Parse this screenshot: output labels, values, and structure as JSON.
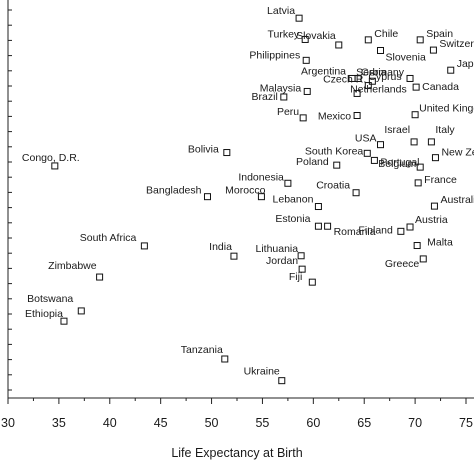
{
  "chart_data": {
    "type": "scatter",
    "title": "",
    "xlabel": "Life Expectancy at Birth",
    "ylabel": "",
    "xlim": [
      30,
      75
    ],
    "ylim": [
      0,
      1
    ],
    "x_ticks": [
      "30",
      "35",
      "40",
      "45",
      "50",
      "55",
      "60",
      "65",
      "70",
      "75"
    ],
    "grid": false,
    "marker": "open-square",
    "points": [
      {
        "label": "Latvia",
        "x": 58.6,
        "y": 0.964
      },
      {
        "label": "Turkey",
        "x": 59.2,
        "y": 0.91
      },
      {
        "label": "Slovakia",
        "x": 62.5,
        "y": 0.896
      },
      {
        "label": "Chile",
        "x": 65.4,
        "y": 0.909
      },
      {
        "label": "Spain",
        "x": 70.5,
        "y": 0.909
      },
      {
        "label": "Switzerland",
        "x": 71.8,
        "y": 0.883
      },
      {
        "label": "Philippines",
        "x": 59.3,
        "y": 0.857
      },
      {
        "label": "Slovenia",
        "x": 66.6,
        "y": 0.882
      },
      {
        "label": "Japan",
        "x": 73.5,
        "y": 0.832
      },
      {
        "label": "Argentina",
        "x": 63.8,
        "y": 0.811
      },
      {
        "label": "Serbia",
        "x": 64.4,
        "y": 0.811
      },
      {
        "label": "Germany",
        "x": 69.5,
        "y": 0.811
      },
      {
        "label": "Cyprus",
        "x": 65.8,
        "y": 0.804
      },
      {
        "label": "Malaysia",
        "x": 59.4,
        "y": 0.778
      },
      {
        "label": "Czech R.",
        "x": 65.4,
        "y": 0.793
      },
      {
        "label": "Canada",
        "x": 70.1,
        "y": 0.789
      },
      {
        "label": "Brazil",
        "x": 57.1,
        "y": 0.764
      },
      {
        "label": "Netherlands",
        "x": 64.3,
        "y": 0.773
      },
      {
        "label": "Peru",
        "x": 59.0,
        "y": 0.711
      },
      {
        "label": "Mexico",
        "x": 64.3,
        "y": 0.717
      },
      {
        "label": "United Kingdom",
        "x": 70.0,
        "y": 0.719
      },
      {
        "label": "Israel",
        "x": 69.9,
        "y": 0.65
      },
      {
        "label": "Italy",
        "x": 71.6,
        "y": 0.65
      },
      {
        "label": "USA",
        "x": 66.6,
        "y": 0.643
      },
      {
        "label": "Bolivia",
        "x": 51.5,
        "y": 0.623
      },
      {
        "label": "South Korea",
        "x": 65.3,
        "y": 0.621
      },
      {
        "label": "Congo, D.R.",
        "x": 34.6,
        "y": 0.589
      },
      {
        "label": "Poland",
        "x": 62.3,
        "y": 0.591
      },
      {
        "label": "Portugal",
        "x": 66.0,
        "y": 0.603
      },
      {
        "label": "Belgium",
        "x": 70.5,
        "y": 0.586
      },
      {
        "label": "New Zealand",
        "x": 72.0,
        "y": 0.61
      },
      {
        "label": "Indonesia",
        "x": 57.5,
        "y": 0.545
      },
      {
        "label": "Croatia",
        "x": 64.2,
        "y": 0.521
      },
      {
        "label": "France",
        "x": 70.3,
        "y": 0.546
      },
      {
        "label": "Bangladesh",
        "x": 49.6,
        "y": 0.511
      },
      {
        "label": "Morocco",
        "x": 54.9,
        "y": 0.511
      },
      {
        "label": "Lebanon",
        "x": 60.5,
        "y": 0.486
      },
      {
        "label": "Australia",
        "x": 71.9,
        "y": 0.487
      },
      {
        "label": "Estonia",
        "x": 60.5,
        "y": 0.436
      },
      {
        "label": "Finland",
        "x": 68.6,
        "y": 0.423
      },
      {
        "label": "Austria",
        "x": 69.5,
        "y": 0.434
      },
      {
        "label": "Romania",
        "x": 61.4,
        "y": 0.436
      },
      {
        "label": "Malta",
        "x": 70.2,
        "y": 0.387
      },
      {
        "label": "South Africa",
        "x": 43.4,
        "y": 0.386
      },
      {
        "label": "India",
        "x": 52.2,
        "y": 0.36
      },
      {
        "label": "Lithuania",
        "x": 58.8,
        "y": 0.361
      },
      {
        "label": "Greece",
        "x": 70.8,
        "y": 0.353
      },
      {
        "label": "Jordan",
        "x": 58.9,
        "y": 0.327
      },
      {
        "label": "Zimbabwe",
        "x": 39.0,
        "y": 0.307
      },
      {
        "label": "Fiji",
        "x": 59.9,
        "y": 0.294
      },
      {
        "label": "Botswana",
        "x": 37.2,
        "y": 0.221
      },
      {
        "label": "Ethiopia",
        "x": 35.5,
        "y": 0.195
      },
      {
        "label": "Tanzania",
        "x": 51.3,
        "y": 0.099
      },
      {
        "label": "Ukraine",
        "x": 56.9,
        "y": 0.044
      }
    ]
  }
}
